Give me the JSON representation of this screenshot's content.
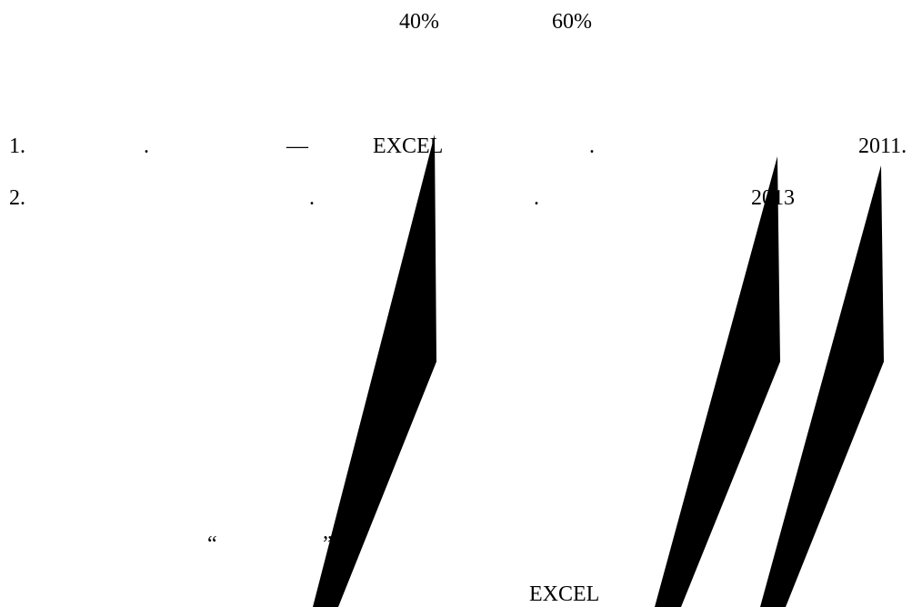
{
  "header": {
    "percent_left": "40%",
    "percent_right": "60%"
  },
  "references": [
    {
      "number": "1.",
      "dot_a": ".",
      "dash": "—",
      "word": "EXCEL",
      "dot_b": ".",
      "year": "2011."
    },
    {
      "number": "2.",
      "dot_a": ".",
      "dot_b": ".",
      "year": "2013"
    }
  ],
  "quote": {
    "open": "“",
    "close": "”"
  },
  "footer": {
    "word": "EXCEL"
  },
  "colors": {
    "text": "#000000",
    "shape": "#000000",
    "background": "#ffffff"
  }
}
